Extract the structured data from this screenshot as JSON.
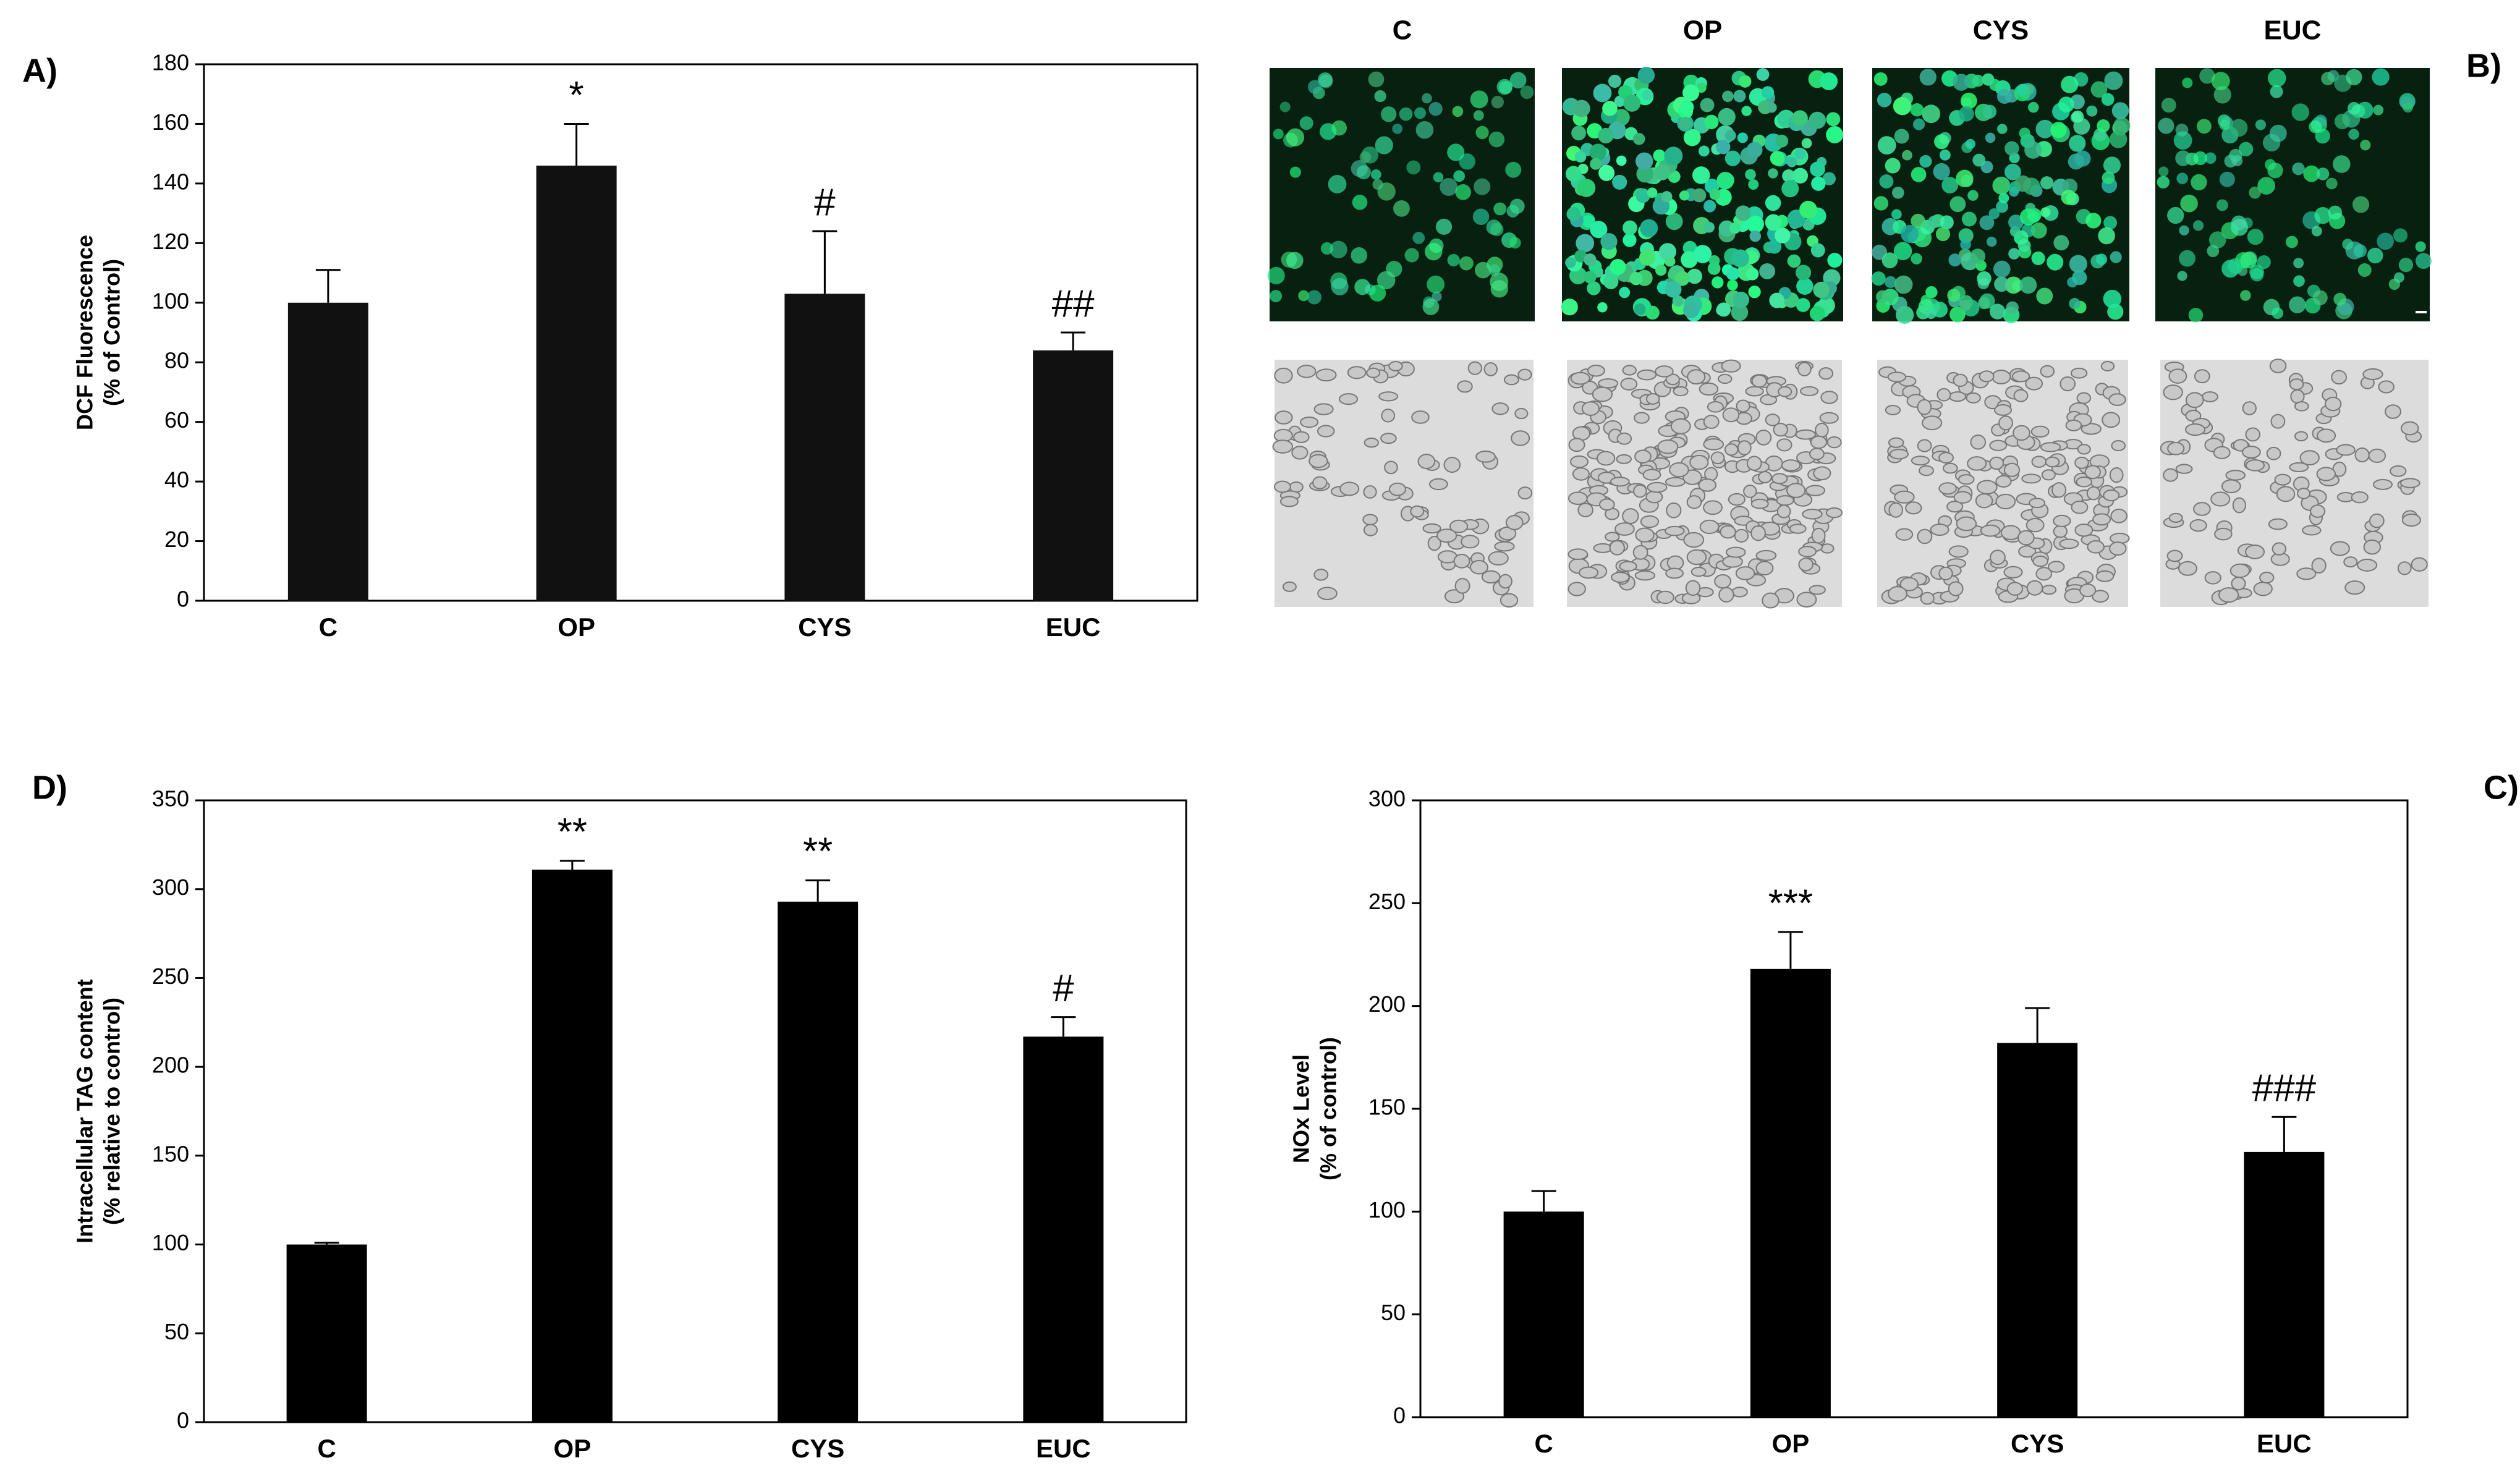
{
  "chart_data": [
    {
      "type": "bar",
      "panel": "A)",
      "categories": [
        "C",
        "OP",
        "CYS",
        "EUC"
      ],
      "values": [
        100,
        146,
        103,
        84
      ],
      "errors": [
        11,
        14,
        21,
        6
      ],
      "annotations": [
        null,
        "*",
        "#",
        "##"
      ],
      "ylabel": [
        "DCF Fluorescence",
        "(% of Control)"
      ],
      "ylim": [
        0,
        180
      ],
      "yticks": [
        0,
        20,
        40,
        60,
        80,
        100,
        120,
        140,
        160,
        180
      ],
      "color": "#111111"
    },
    {
      "type": "bar",
      "panel": "D)",
      "categories": [
        "C",
        "OP",
        "CYS",
        "EUC"
      ],
      "values": [
        100,
        311,
        293,
        217
      ],
      "errors": [
        1,
        5,
        12,
        11
      ],
      "annotations": [
        null,
        "**",
        "**",
        "#"
      ],
      "ylabel": [
        "Intracellular TAG content",
        "(% relative to control)"
      ],
      "ylim": [
        0,
        350
      ],
      "yticks": [
        0,
        50,
        100,
        150,
        200,
        250,
        300,
        350
      ],
      "color": "#000000"
    },
    {
      "type": "bar",
      "panel": "C)",
      "categories": [
        "C",
        "OP",
        "CYS",
        "EUC"
      ],
      "values": [
        100,
        218,
        182,
        129
      ],
      "errors": [
        10,
        18,
        17,
        17
      ],
      "annotations": [
        null,
        "***",
        null,
        "###"
      ],
      "ylabel": [
        "NOx Level",
        "(% of control)"
      ],
      "ylim": [
        0,
        300
      ],
      "yticks": [
        0,
        50,
        100,
        150,
        200,
        250,
        300
      ],
      "color": "#000000"
    }
  ],
  "panel_b": {
    "label": "B)",
    "columns": [
      "C",
      "OP",
      "CYS",
      "EUC"
    ]
  }
}
